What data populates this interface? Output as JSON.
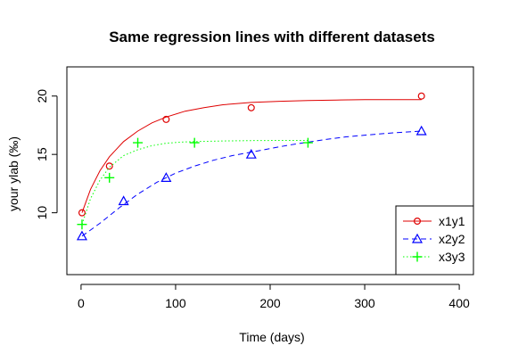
{
  "chart_data": {
    "type": "line",
    "title": "Same regression lines with different datasets",
    "xlabel": "Time (days)",
    "ylabel": "your ylab (‰)",
    "xlim": [
      -15,
      415
    ],
    "ylim": [
      4.7,
      22.5
    ],
    "x_ticks": [
      0,
      100,
      200,
      300,
      400
    ],
    "y_ticks": [
      10,
      15,
      20
    ],
    "grid": false,
    "legend_position": "bottom-right",
    "series": [
      {
        "name": "x1y1",
        "color": "#DF0000",
        "line_style": "solid",
        "marker": "circle",
        "points": {
          "x": [
            1,
            30,
            90,
            180,
            360
          ],
          "y": [
            10,
            14,
            18,
            19,
            20
          ]
        },
        "fit": {
          "x": [
            1,
            10,
            20,
            30,
            45,
            60,
            75,
            90,
            110,
            130,
            150,
            180,
            210,
            240,
            270,
            300,
            330,
            360
          ],
          "y": [
            10.0,
            12.0,
            13.6,
            14.8,
            16.1,
            17.0,
            17.7,
            18.2,
            18.7,
            19.0,
            19.25,
            19.45,
            19.55,
            19.62,
            19.66,
            19.69,
            19.7,
            19.7
          ]
        }
      },
      {
        "name": "x2y2",
        "color": "#0000FF",
        "line_style": "dashed",
        "marker": "triangle",
        "points": {
          "x": [
            1,
            45,
            90,
            180,
            360
          ],
          "y": [
            8,
            11,
            13,
            15,
            17
          ]
        },
        "fit": {
          "x": [
            1,
            20,
            40,
            60,
            80,
            100,
            120,
            140,
            160,
            180,
            200,
            220,
            240,
            260,
            280,
            300,
            330,
            360
          ],
          "y": [
            8.0,
            9.1,
            10.4,
            11.6,
            12.6,
            13.4,
            14.0,
            14.5,
            14.9,
            15.2,
            15.5,
            15.8,
            16.05,
            16.3,
            16.5,
            16.65,
            16.85,
            17.0
          ]
        }
      },
      {
        "name": "x3y3",
        "color": "#00FF00",
        "line_style": "dotted",
        "marker": "plus",
        "points": {
          "x": [
            1,
            30,
            60,
            120,
            240
          ],
          "y": [
            9,
            13,
            16,
            16,
            16
          ]
        },
        "fit": {
          "x": [
            1,
            10,
            20,
            30,
            45,
            60,
            75,
            90,
            105,
            120,
            150,
            180,
            210,
            240
          ],
          "y": [
            9.0,
            11.2,
            12.8,
            13.9,
            14.9,
            15.4,
            15.75,
            15.95,
            16.05,
            16.1,
            16.15,
            16.18,
            16.2,
            16.2
          ]
        }
      }
    ]
  }
}
